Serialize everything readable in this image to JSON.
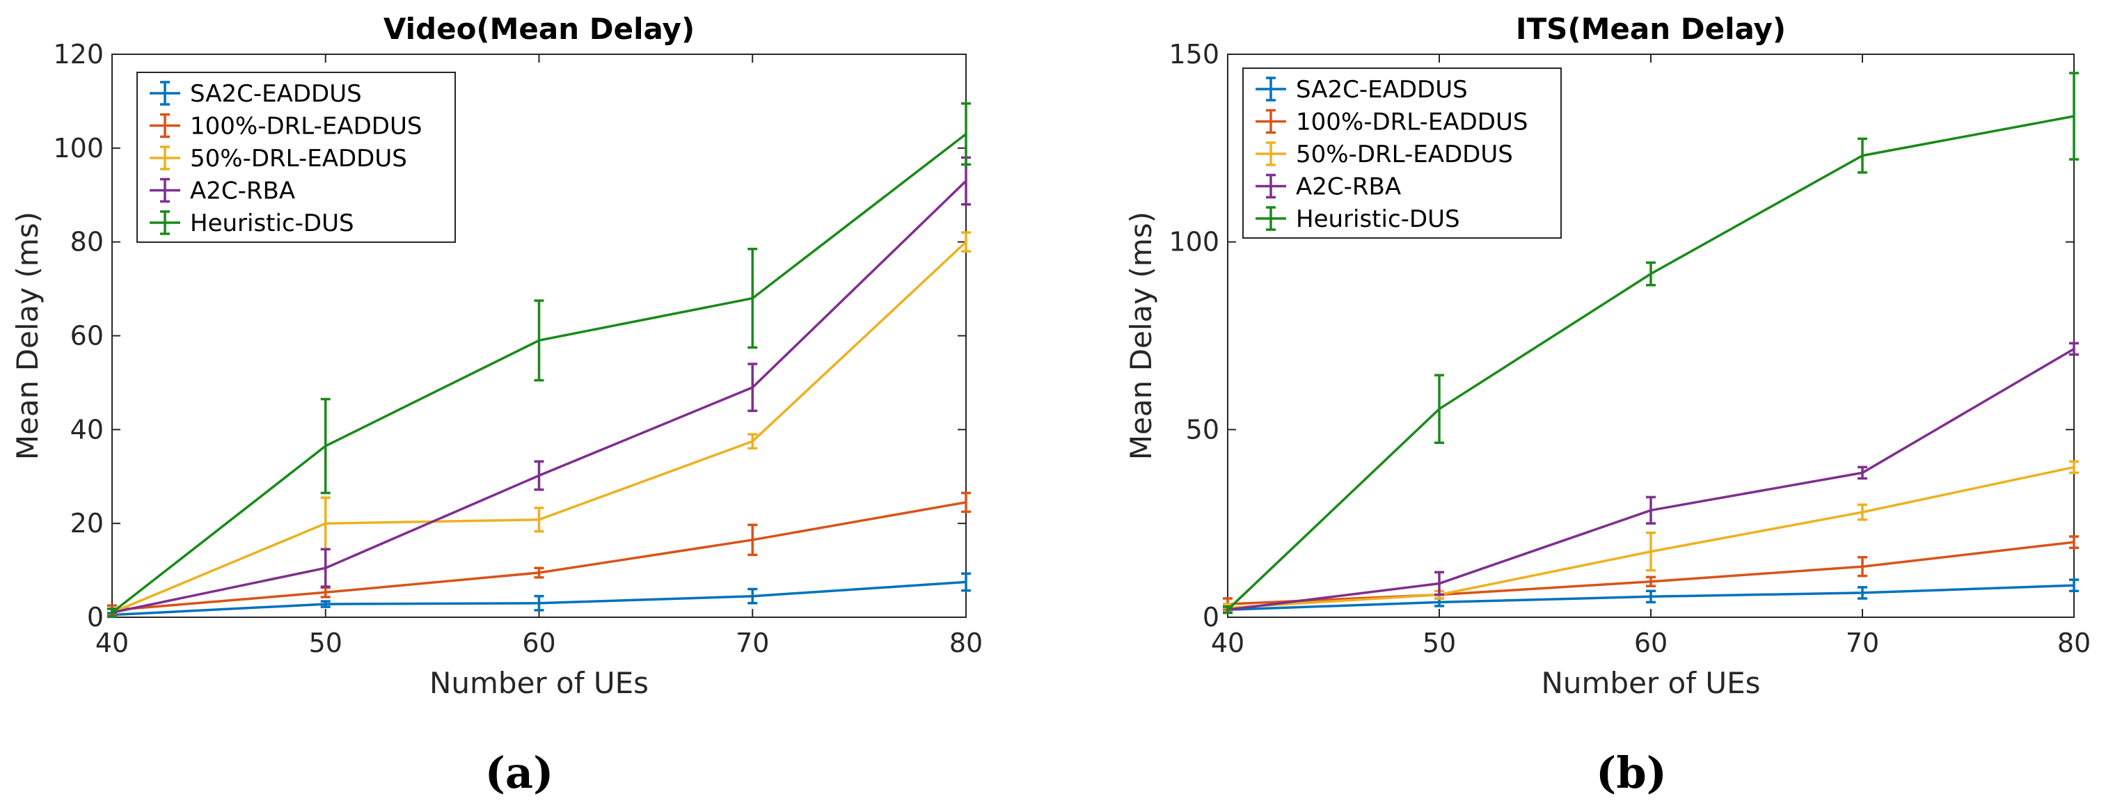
{
  "chart_data": [
    {
      "type": "line",
      "title": "Video(Mean Delay)",
      "xlabel": "Number of UEs",
      "ylabel": "Mean Delay (ms)",
      "caption": "(a)",
      "x": [
        40,
        50,
        60,
        70,
        80
      ],
      "xlim": [
        40,
        80
      ],
      "ylim": [
        0,
        120
      ],
      "xticks": [
        40,
        50,
        60,
        70,
        80
      ],
      "yticks": [
        0,
        20,
        40,
        60,
        80,
        100,
        120
      ],
      "grid": false,
      "legend_position": "top-left",
      "series": [
        {
          "name": "SA2C-EADDUS",
          "color": "#0072BD",
          "values": [
            0.5,
            2.8,
            3.0,
            4.5,
            7.5
          ],
          "errors": [
            0.4,
            0.6,
            1.5,
            1.5,
            1.8
          ]
        },
        {
          "name": "100%-DRL-EADDUS",
          "color": "#D95319",
          "values": [
            1.5,
            5.3,
            9.5,
            16.5,
            24.5
          ],
          "errors": [
            1.0,
            1.0,
            1.0,
            3.2,
            2.0
          ]
        },
        {
          "name": "50%-DRL-EADDUS",
          "color": "#EDB120",
          "values": [
            1.0,
            20.0,
            20.8,
            37.5,
            80.0
          ],
          "errors": [
            0.8,
            5.5,
            2.5,
            1.5,
            2.0
          ]
        },
        {
          "name": "A2C-RBA",
          "color": "#7E2F8E",
          "values": [
            1.0,
            10.5,
            30.2,
            49.0,
            93.0
          ],
          "errors": [
            0.8,
            4.0,
            3.0,
            5.0,
            5.0
          ]
        },
        {
          "name": "Heuristic-DUS",
          "color": "#1A8A1A",
          "values": [
            1.0,
            36.5,
            59.0,
            68.0,
            103.0
          ],
          "errors": [
            0.8,
            10.0,
            8.5,
            10.5,
            6.5
          ]
        }
      ]
    },
    {
      "type": "line",
      "title": "ITS(Mean Delay)",
      "xlabel": "Number of UEs",
      "ylabel": "Mean Delay (ms)",
      "caption": "(b)",
      "x": [
        40,
        50,
        60,
        70,
        80
      ],
      "xlim": [
        40,
        80
      ],
      "ylim": [
        0,
        150
      ],
      "xticks": [
        40,
        50,
        60,
        70,
        80
      ],
      "yticks": [
        0,
        50,
        100,
        150
      ],
      "grid": false,
      "legend_position": "top-left",
      "series": [
        {
          "name": "SA2C-EADDUS",
          "color": "#0072BD",
          "values": [
            2.0,
            4.0,
            5.5,
            6.5,
            8.5
          ],
          "errors": [
            0.8,
            1.0,
            1.5,
            1.5,
            1.5
          ]
        },
        {
          "name": "100%-DRL-EADDUS",
          "color": "#D95319",
          "values": [
            3.5,
            6.0,
            9.5,
            13.5,
            20.0
          ],
          "errors": [
            1.5,
            1.0,
            1.2,
            2.5,
            1.5
          ]
        },
        {
          "name": "50%-DRL-EADDUS",
          "color": "#EDB120",
          "values": [
            2.5,
            6.0,
            17.5,
            28.0,
            40.0
          ],
          "errors": [
            1.0,
            1.0,
            5.0,
            2.0,
            1.5
          ]
        },
        {
          "name": "A2C-RBA",
          "color": "#7E2F8E",
          "values": [
            2.0,
            9.0,
            28.5,
            38.5,
            71.5
          ],
          "errors": [
            0.8,
            3.0,
            3.5,
            1.5,
            1.5
          ]
        },
        {
          "name": "Heuristic-DUS",
          "color": "#1A8A1A",
          "values": [
            2.0,
            55.5,
            91.5,
            123.0,
            133.5
          ],
          "errors": [
            0.8,
            9.0,
            3.0,
            4.5,
            11.5
          ]
        }
      ]
    }
  ]
}
